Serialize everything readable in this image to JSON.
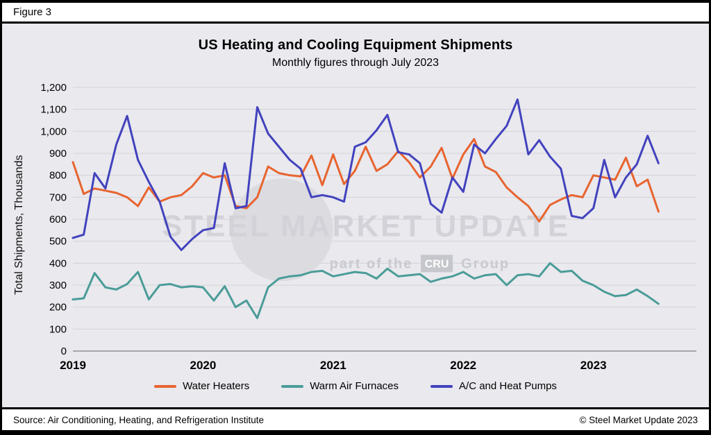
{
  "figure_label": "Figure 3",
  "title": "US Heating and Cooling Equipment Shipments",
  "subtitle": "Monthly figures through July 2023",
  "y_axis_label": "Total Shipments, Thousands",
  "source": "Source: Air Conditioning, Heating, and Refrigeration Institute",
  "copyright": "© Steel Market Update 2023",
  "watermark": {
    "line1": "STEEL MARKET UPDATE",
    "line2_prefix": "part of the",
    "line2_box": "CRU",
    "line2_suffix": "Group"
  },
  "colors": {
    "chart_background": "#E9E9EE",
    "gridline": "#D2D2D8",
    "axis_line": "#8F8F96",
    "water_heaters": "#E8642F",
    "warm_air_furnaces": "#4A9C98",
    "ac_heat_pumps": "#4242BE",
    "watermark_gray": "#D2D2D8"
  },
  "chart_data": {
    "type": "line",
    "x_note": "Monthly data, January 2019 through July 2023 (55 points)",
    "x_tick_labels": [
      "2019",
      "2020",
      "2021",
      "2022",
      "2023"
    ],
    "x_tick_month_index": [
      0,
      12,
      24,
      36,
      48
    ],
    "ylim": [
      0,
      1200
    ],
    "y_tick_interval": 100,
    "y_tick_labels": [
      "0",
      "100",
      "200",
      "300",
      "400",
      "500",
      "600",
      "700",
      "800",
      "900",
      "1,000",
      "1,100",
      "1,200"
    ],
    "legend_position": "bottom",
    "grid": true,
    "series": [
      {
        "name": "Water Heaters",
        "color": "#E8642F",
        "values": [
          860,
          715,
          740,
          730,
          720,
          700,
          660,
          745,
          680,
          700,
          710,
          750,
          810,
          790,
          800,
          660,
          650,
          700,
          840,
          810,
          800,
          795,
          890,
          755,
          895,
          760,
          820,
          930,
          820,
          850,
          910,
          860,
          790,
          840,
          925,
          785,
          895,
          965,
          840,
          815,
          745,
          700,
          660,
          590,
          665,
          690,
          710,
          700,
          800,
          790,
          780,
          880,
          750,
          780,
          635
        ]
      },
      {
        "name": "Warm Air Furnaces",
        "color": "#4A9C98",
        "values": [
          235,
          240,
          355,
          290,
          280,
          305,
          360,
          235,
          300,
          305,
          290,
          295,
          290,
          230,
          295,
          200,
          230,
          150,
          290,
          330,
          340,
          345,
          360,
          365,
          340,
          350,
          360,
          355,
          330,
          375,
          340,
          345,
          350,
          315,
          330,
          340,
          360,
          330,
          345,
          350,
          300,
          345,
          350,
          340,
          400,
          360,
          365,
          320,
          300,
          270,
          250,
          255,
          280,
          250,
          215
        ]
      },
      {
        "name": "A/C and Heat Pumps",
        "color": "#4242BE",
        "values": [
          515,
          530,
          810,
          740,
          940,
          1070,
          870,
          770,
          680,
          520,
          460,
          510,
          550,
          560,
          855,
          650,
          660,
          1110,
          990,
          930,
          870,
          830,
          700,
          710,
          700,
          680,
          930,
          950,
          1005,
          1075,
          905,
          895,
          855,
          670,
          630,
          790,
          725,
          940,
          900,
          965,
          1025,
          1145,
          895,
          960,
          885,
          830,
          615,
          605,
          650,
          870,
          700,
          790,
          850,
          980,
          855
        ]
      }
    ]
  }
}
